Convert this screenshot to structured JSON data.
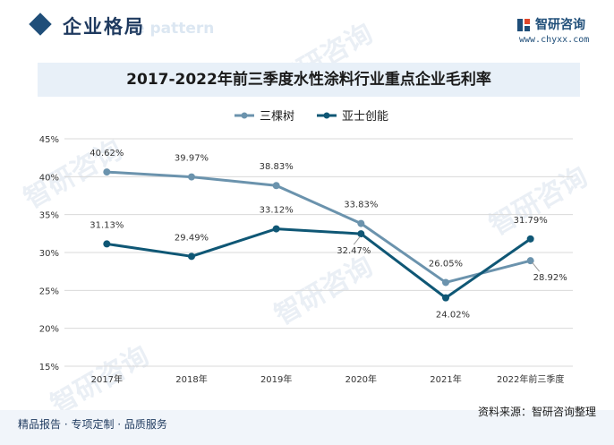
{
  "header": {
    "section_title": "企业格局",
    "section_subtitle_ghost": "e pattern",
    "brand_name": "智研咨询",
    "brand_url": "www.chyxx.com"
  },
  "footer": {
    "left_text": "精品报告 · 专项定制 · 品质服务",
    "source_text": "资料来源：智研咨询整理"
  },
  "watermark": "智研咨询",
  "colors": {
    "series1": "#6b93ad",
    "series2": "#0f5775",
    "accent": "#1f4e79"
  },
  "chart_data": {
    "type": "line",
    "title": "2017-2022年前三季度水性涂料行业重点企业毛利率",
    "categories": [
      "2017年",
      "2018年",
      "2019年",
      "2020年",
      "2021年",
      "2022年前三季度"
    ],
    "yticks": [
      "15%",
      "20%",
      "25%",
      "30%",
      "35%",
      "40%",
      "45%"
    ],
    "ylim": [
      15,
      45
    ],
    "grid": true,
    "legend_position": "top-center",
    "series": [
      {
        "name": "三棵树",
        "color": "#6b93ad",
        "values": [
          40.62,
          39.97,
          38.83,
          33.83,
          26.05,
          28.92
        ],
        "labels": [
          "40.62%",
          "39.97%",
          "38.83%",
          "33.83%",
          "26.05%",
          "28.92%"
        ]
      },
      {
        "name": "亚士创能",
        "color": "#0f5775",
        "values": [
          31.13,
          29.49,
          33.12,
          32.47,
          24.02,
          31.79
        ],
        "labels": [
          "31.13%",
          "29.49%",
          "33.12%",
          "32.47%",
          "24.02%",
          "31.79%"
        ]
      }
    ]
  }
}
